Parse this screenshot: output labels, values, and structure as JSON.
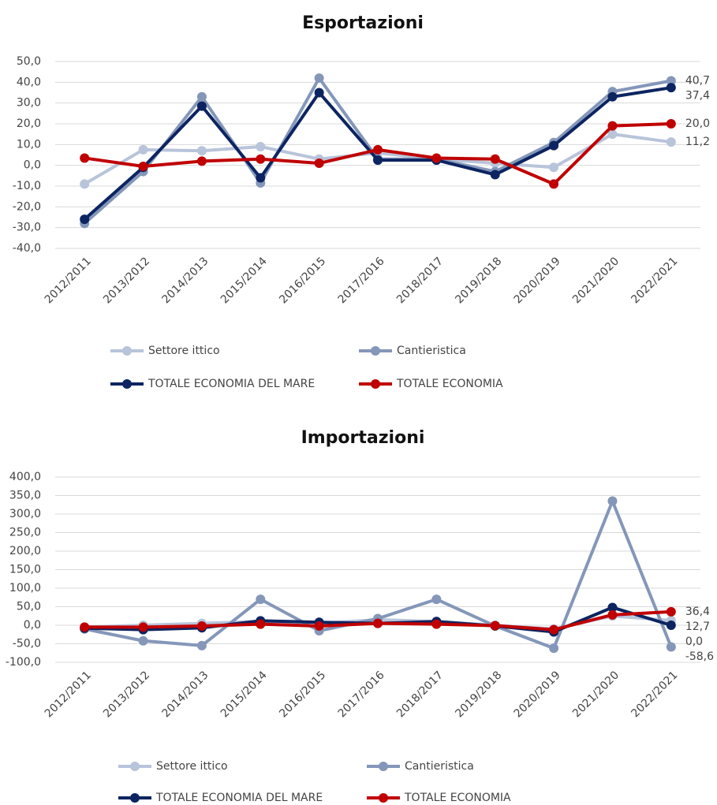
{
  "chart_data": [
    {
      "type": "line",
      "title": "Esportazioni",
      "categories": [
        "2012/2011",
        "2013/2012",
        "2014/2013",
        "2015/2014",
        "2016/2015",
        "2017/2016",
        "2018/2017",
        "2019/2018",
        "2020/2019",
        "2021/2020",
        "2022/2021"
      ],
      "ylim": [
        -40,
        50
      ],
      "yticks": [
        {
          "value": -40,
          "label": "-40,0"
        },
        {
          "value": -30,
          "label": "-30,0"
        },
        {
          "value": -20,
          "label": "-20,0"
        },
        {
          "value": -10,
          "label": "-10,0"
        },
        {
          "value": 0,
          "label": "0,0"
        },
        {
          "value": 10,
          "label": "10,0"
        },
        {
          "value": 20,
          "label": "20,0"
        },
        {
          "value": 30,
          "label": "30,0"
        },
        {
          "value": 40,
          "label": "40,0"
        },
        {
          "value": 50,
          "label": "50,0"
        }
      ],
      "grid": true,
      "series": [
        {
          "name": "Settore ittico",
          "color": "#b8c4da",
          "values": [
            -9,
            7.5,
            7,
            9,
            3,
            6,
            3,
            1,
            -1,
            15,
            11.2
          ],
          "value_labels": [
            null,
            null,
            null,
            null,
            null,
            null,
            null,
            null,
            null,
            null,
            "11,2"
          ]
        },
        {
          "name": "Cantieristica",
          "color": "#8497b9",
          "values": [
            -28,
            -3,
            33,
            -8.5,
            42,
            3,
            3,
            -3,
            11,
            35.5,
            40.7
          ],
          "value_labels": [
            null,
            null,
            null,
            null,
            null,
            null,
            null,
            null,
            null,
            null,
            "40,7"
          ]
        },
        {
          "name": "TOTALE ECONOMIA DEL MARE",
          "color": "#0c2461",
          "values": [
            -26,
            -1,
            28.5,
            -6,
            35,
            2.5,
            2.5,
            -4.5,
            9.5,
            33,
            37.4
          ],
          "value_labels": [
            null,
            null,
            null,
            null,
            null,
            null,
            null,
            null,
            null,
            null,
            "37,4"
          ]
        },
        {
          "name": "TOTALE ECONOMIA",
          "color": "#c00000",
          "values": [
            3.5,
            -0.5,
            2,
            3,
            1,
            7.5,
            3.5,
            3,
            -9,
            19,
            20.0
          ],
          "value_labels": [
            null,
            null,
            null,
            null,
            null,
            null,
            null,
            null,
            null,
            null,
            "20,0"
          ]
        }
      ]
    },
    {
      "type": "line",
      "title": "Importazioni",
      "categories": [
        "2012/2011",
        "2013/2012",
        "2014/2013",
        "2015/2014",
        "2016/2015",
        "2017/2016",
        "2018/2017",
        "2019/2018",
        "2020/2019",
        "2021/2020",
        "2022/2021"
      ],
      "ylim": [
        -100,
        400
      ],
      "yticks": [
        {
          "value": -100,
          "label": "-100,0"
        },
        {
          "value": -50,
          "label": "-50,0"
        },
        {
          "value": 0,
          "label": "0,0"
        },
        {
          "value": 50,
          "label": "50,0"
        },
        {
          "value": 100,
          "label": "100,0"
        },
        {
          "value": 150,
          "label": "150,0"
        },
        {
          "value": 200,
          "label": "200,0"
        },
        {
          "value": 250,
          "label": "250,0"
        },
        {
          "value": 300,
          "label": "300,0"
        },
        {
          "value": 350,
          "label": "350,0"
        },
        {
          "value": 400,
          "label": "400,0"
        }
      ],
      "grid": true,
      "series": [
        {
          "name": "Settore ittico",
          "color": "#b8c4da",
          "values": [
            -5,
            0,
            5,
            10,
            5,
            15,
            10,
            0,
            -10,
            25,
            12.7
          ],
          "value_labels": [
            null,
            null,
            null,
            null,
            null,
            null,
            null,
            null,
            null,
            null,
            "12,7"
          ]
        },
        {
          "name": "Cantieristica",
          "color": "#8497b9",
          "values": [
            -10,
            -42,
            -55,
            70,
            -15,
            18,
            70,
            -2,
            -62,
            335,
            -58.6
          ],
          "value_labels": [
            null,
            null,
            null,
            null,
            null,
            null,
            null,
            null,
            null,
            null,
            "-58,6"
          ]
        },
        {
          "name": "TOTALE ECONOMIA DEL MARE",
          "color": "#0c2461",
          "values": [
            -8,
            -12,
            -7,
            12,
            8,
            5,
            10,
            -2,
            -18,
            48,
            0.0
          ],
          "value_labels": [
            null,
            null,
            null,
            null,
            null,
            null,
            null,
            null,
            null,
            null,
            "0,0"
          ]
        },
        {
          "name": "TOTALE ECONOMIA",
          "color": "#c00000",
          "values": [
            -5,
            -5,
            -2,
            3,
            -2,
            5,
            3,
            -1,
            -12,
            28,
            36.4
          ],
          "value_labels": [
            null,
            null,
            null,
            null,
            null,
            null,
            null,
            null,
            null,
            null,
            "36,4"
          ]
        }
      ]
    }
  ]
}
